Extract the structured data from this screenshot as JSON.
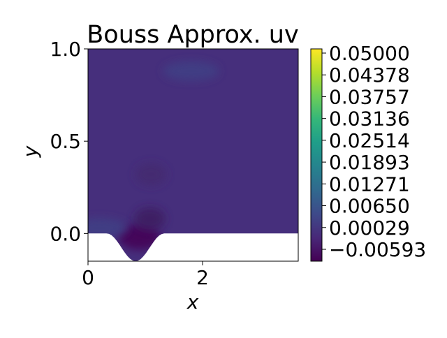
{
  "chart_data": {
    "type": "heatmap",
    "title": "Bouss Approx. uv",
    "xlabel": "x",
    "ylabel": "y",
    "xlim": [
      0,
      3.67
    ],
    "ylim": [
      -0.15,
      1.0
    ],
    "x_ticks": [
      0,
      2
    ],
    "x_tick_labels": [
      "0",
      "2"
    ],
    "y_ticks": [
      0.0,
      0.5,
      1.0
    ],
    "y_tick_labels": [
      "0.0",
      "0.5",
      "1.0"
    ],
    "colorbar": {
      "colormap": "viridis",
      "range": [
        -0.00593,
        0.05
      ],
      "tick_values": [
        0.05,
        0.04378,
        0.03757,
        0.03136,
        0.02514,
        0.01893,
        0.01271,
        0.0065,
        0.00029,
        -0.00593
      ],
      "tick_labels": [
        "0.05000",
        "0.04378",
        "0.03757",
        "0.03136",
        "0.02514",
        "0.01893",
        "0.01271",
        "0.00650",
        "0.00029",
        "−0.00593"
      ]
    },
    "field": {
      "background_value": 0.001,
      "bump_center_x": 0.83,
      "bump_min_y": -0.15,
      "bump_halfwidth_x": 0.5,
      "features": [
        {
          "x": 0.9,
          "y": -0.02,
          "value": -0.006
        },
        {
          "x": 1.08,
          "y": 0.08,
          "value": -0.004
        },
        {
          "x": 1.1,
          "y": 0.32,
          "value": -0.001
        },
        {
          "x": 0.2,
          "y": 0.03,
          "value": 0.004
        },
        {
          "x": 1.8,
          "y": 0.88,
          "value": 0.0035
        }
      ]
    },
    "grid": false,
    "legend": "colorbar-right"
  },
  "colors": {
    "field_base": "#462f7c",
    "field_dark": "#3d1b60",
    "field_darkest": "#440154",
    "field_light": "#413f85",
    "axis": "#000000",
    "background": "#ffffff"
  }
}
